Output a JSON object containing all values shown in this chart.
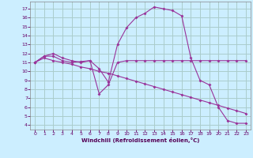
{
  "bg_color": "#cceeff",
  "grid_color": "#aacccc",
  "line_color": "#993399",
  "xlabel": "Windchill (Refroidissement éolien,°C)",
  "xlim": [
    -0.5,
    23.5
  ],
  "ylim": [
    3.5,
    17.8
  ],
  "yticks": [
    4,
    5,
    6,
    7,
    8,
    9,
    10,
    11,
    12,
    13,
    14,
    15,
    16,
    17
  ],
  "xticks": [
    0,
    1,
    2,
    3,
    4,
    5,
    6,
    7,
    8,
    9,
    10,
    11,
    12,
    13,
    14,
    15,
    16,
    17,
    18,
    19,
    20,
    21,
    22,
    23
  ],
  "series1_x": [
    0,
    1,
    2,
    3,
    4,
    5,
    6,
    7,
    8,
    9,
    10,
    11,
    12,
    13,
    14,
    15,
    16,
    17,
    18,
    19,
    20,
    21,
    22,
    23
  ],
  "series1_y": [
    11.0,
    11.7,
    11.7,
    11.2,
    11.0,
    11.1,
    11.2,
    10.3,
    8.8,
    13.0,
    14.9,
    16.0,
    16.5,
    17.2,
    17.0,
    16.8,
    16.2,
    11.5,
    9.0,
    8.5,
    6.0,
    4.5,
    4.2,
    4.2
  ],
  "series2_x": [
    0,
    1,
    2,
    3,
    4,
    5,
    6,
    7,
    8,
    9,
    10,
    11,
    12,
    13,
    14,
    15,
    16,
    17,
    18,
    19,
    20,
    21,
    22,
    23
  ],
  "series2_y": [
    11.0,
    11.7,
    12.0,
    11.5,
    11.2,
    11.0,
    11.2,
    7.5,
    8.5,
    11.0,
    11.2,
    11.2,
    11.2,
    11.2,
    11.2,
    11.2,
    11.2,
    11.2,
    11.2,
    11.2,
    11.2,
    11.2,
    11.2,
    11.2
  ],
  "series3_x": [
    0,
    1,
    2,
    3,
    4,
    5,
    6,
    7,
    8,
    9,
    10,
    11,
    12,
    13,
    14,
    15,
    16,
    17,
    18,
    19,
    20,
    21,
    22,
    23
  ],
  "series3_y": [
    11.0,
    11.5,
    11.2,
    11.0,
    10.8,
    10.5,
    10.3,
    10.0,
    9.8,
    9.5,
    9.2,
    8.9,
    8.6,
    8.3,
    8.0,
    7.7,
    7.4,
    7.1,
    6.8,
    6.5,
    6.2,
    5.9,
    5.6,
    5.3
  ]
}
